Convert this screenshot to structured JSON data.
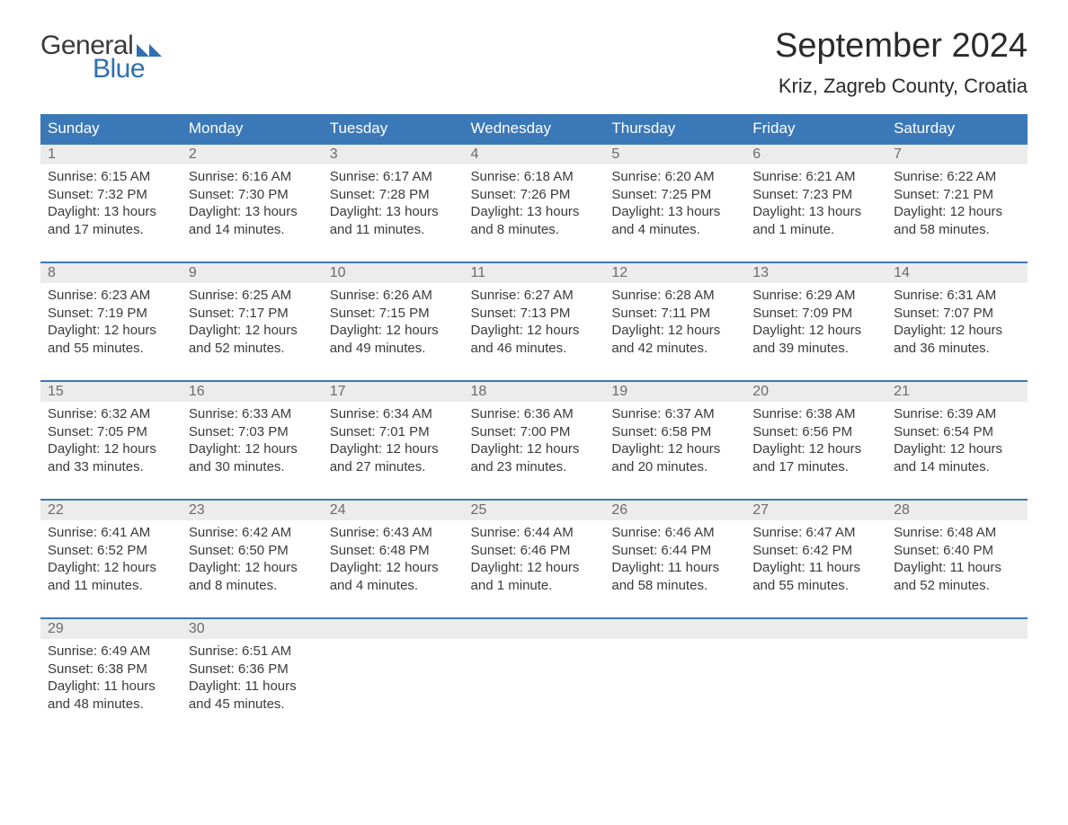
{
  "brand": {
    "word1": "General",
    "word2": "Blue",
    "flag_color": "#2f6fb2"
  },
  "title": "September 2024",
  "location": "Kriz, Zagreb County, Croatia",
  "colors": {
    "header_bg": "#3b78b8",
    "header_text": "#ffffff",
    "daynum_bg": "#ececec",
    "daynum_text": "#6b6b6b",
    "row_divider": "#3b78b8",
    "body_text": "#3a3a3a",
    "background": "#ffffff"
  },
  "typography": {
    "title_fontsize": 38,
    "location_fontsize": 22,
    "header_fontsize": 17,
    "cell_fontsize": 15
  },
  "day_names": [
    "Sunday",
    "Monday",
    "Tuesday",
    "Wednesday",
    "Thursday",
    "Friday",
    "Saturday"
  ],
  "weeks": [
    [
      {
        "n": "1",
        "sunrise": "6:15 AM",
        "sunset": "7:32 PM",
        "daylight": "13 hours and 17 minutes."
      },
      {
        "n": "2",
        "sunrise": "6:16 AM",
        "sunset": "7:30 PM",
        "daylight": "13 hours and 14 minutes."
      },
      {
        "n": "3",
        "sunrise": "6:17 AM",
        "sunset": "7:28 PM",
        "daylight": "13 hours and 11 minutes."
      },
      {
        "n": "4",
        "sunrise": "6:18 AM",
        "sunset": "7:26 PM",
        "daylight": "13 hours and 8 minutes."
      },
      {
        "n": "5",
        "sunrise": "6:20 AM",
        "sunset": "7:25 PM",
        "daylight": "13 hours and 4 minutes."
      },
      {
        "n": "6",
        "sunrise": "6:21 AM",
        "sunset": "7:23 PM",
        "daylight": "13 hours and 1 minute."
      },
      {
        "n": "7",
        "sunrise": "6:22 AM",
        "sunset": "7:21 PM",
        "daylight": "12 hours and 58 minutes."
      }
    ],
    [
      {
        "n": "8",
        "sunrise": "6:23 AM",
        "sunset": "7:19 PM",
        "daylight": "12 hours and 55 minutes."
      },
      {
        "n": "9",
        "sunrise": "6:25 AM",
        "sunset": "7:17 PM",
        "daylight": "12 hours and 52 minutes."
      },
      {
        "n": "10",
        "sunrise": "6:26 AM",
        "sunset": "7:15 PM",
        "daylight": "12 hours and 49 minutes."
      },
      {
        "n": "11",
        "sunrise": "6:27 AM",
        "sunset": "7:13 PM",
        "daylight": "12 hours and 46 minutes."
      },
      {
        "n": "12",
        "sunrise": "6:28 AM",
        "sunset": "7:11 PM",
        "daylight": "12 hours and 42 minutes."
      },
      {
        "n": "13",
        "sunrise": "6:29 AM",
        "sunset": "7:09 PM",
        "daylight": "12 hours and 39 minutes."
      },
      {
        "n": "14",
        "sunrise": "6:31 AM",
        "sunset": "7:07 PM",
        "daylight": "12 hours and 36 minutes."
      }
    ],
    [
      {
        "n": "15",
        "sunrise": "6:32 AM",
        "sunset": "7:05 PM",
        "daylight": "12 hours and 33 minutes."
      },
      {
        "n": "16",
        "sunrise": "6:33 AM",
        "sunset": "7:03 PM",
        "daylight": "12 hours and 30 minutes."
      },
      {
        "n": "17",
        "sunrise": "6:34 AM",
        "sunset": "7:01 PM",
        "daylight": "12 hours and 27 minutes."
      },
      {
        "n": "18",
        "sunrise": "6:36 AM",
        "sunset": "7:00 PM",
        "daylight": "12 hours and 23 minutes."
      },
      {
        "n": "19",
        "sunrise": "6:37 AM",
        "sunset": "6:58 PM",
        "daylight": "12 hours and 20 minutes."
      },
      {
        "n": "20",
        "sunrise": "6:38 AM",
        "sunset": "6:56 PM",
        "daylight": "12 hours and 17 minutes."
      },
      {
        "n": "21",
        "sunrise": "6:39 AM",
        "sunset": "6:54 PM",
        "daylight": "12 hours and 14 minutes."
      }
    ],
    [
      {
        "n": "22",
        "sunrise": "6:41 AM",
        "sunset": "6:52 PM",
        "daylight": "12 hours and 11 minutes."
      },
      {
        "n": "23",
        "sunrise": "6:42 AM",
        "sunset": "6:50 PM",
        "daylight": "12 hours and 8 minutes."
      },
      {
        "n": "24",
        "sunrise": "6:43 AM",
        "sunset": "6:48 PM",
        "daylight": "12 hours and 4 minutes."
      },
      {
        "n": "25",
        "sunrise": "6:44 AM",
        "sunset": "6:46 PM",
        "daylight": "12 hours and 1 minute."
      },
      {
        "n": "26",
        "sunrise": "6:46 AM",
        "sunset": "6:44 PM",
        "daylight": "11 hours and 58 minutes."
      },
      {
        "n": "27",
        "sunrise": "6:47 AM",
        "sunset": "6:42 PM",
        "daylight": "11 hours and 55 minutes."
      },
      {
        "n": "28",
        "sunrise": "6:48 AM",
        "sunset": "6:40 PM",
        "daylight": "11 hours and 52 minutes."
      }
    ],
    [
      {
        "n": "29",
        "sunrise": "6:49 AM",
        "sunset": "6:38 PM",
        "daylight": "11 hours and 48 minutes."
      },
      {
        "n": "30",
        "sunrise": "6:51 AM",
        "sunset": "6:36 PM",
        "daylight": "11 hours and 45 minutes."
      },
      null,
      null,
      null,
      null,
      null
    ]
  ],
  "labels": {
    "sunrise": "Sunrise: ",
    "sunset": "Sunset: ",
    "daylight": "Daylight: "
  }
}
